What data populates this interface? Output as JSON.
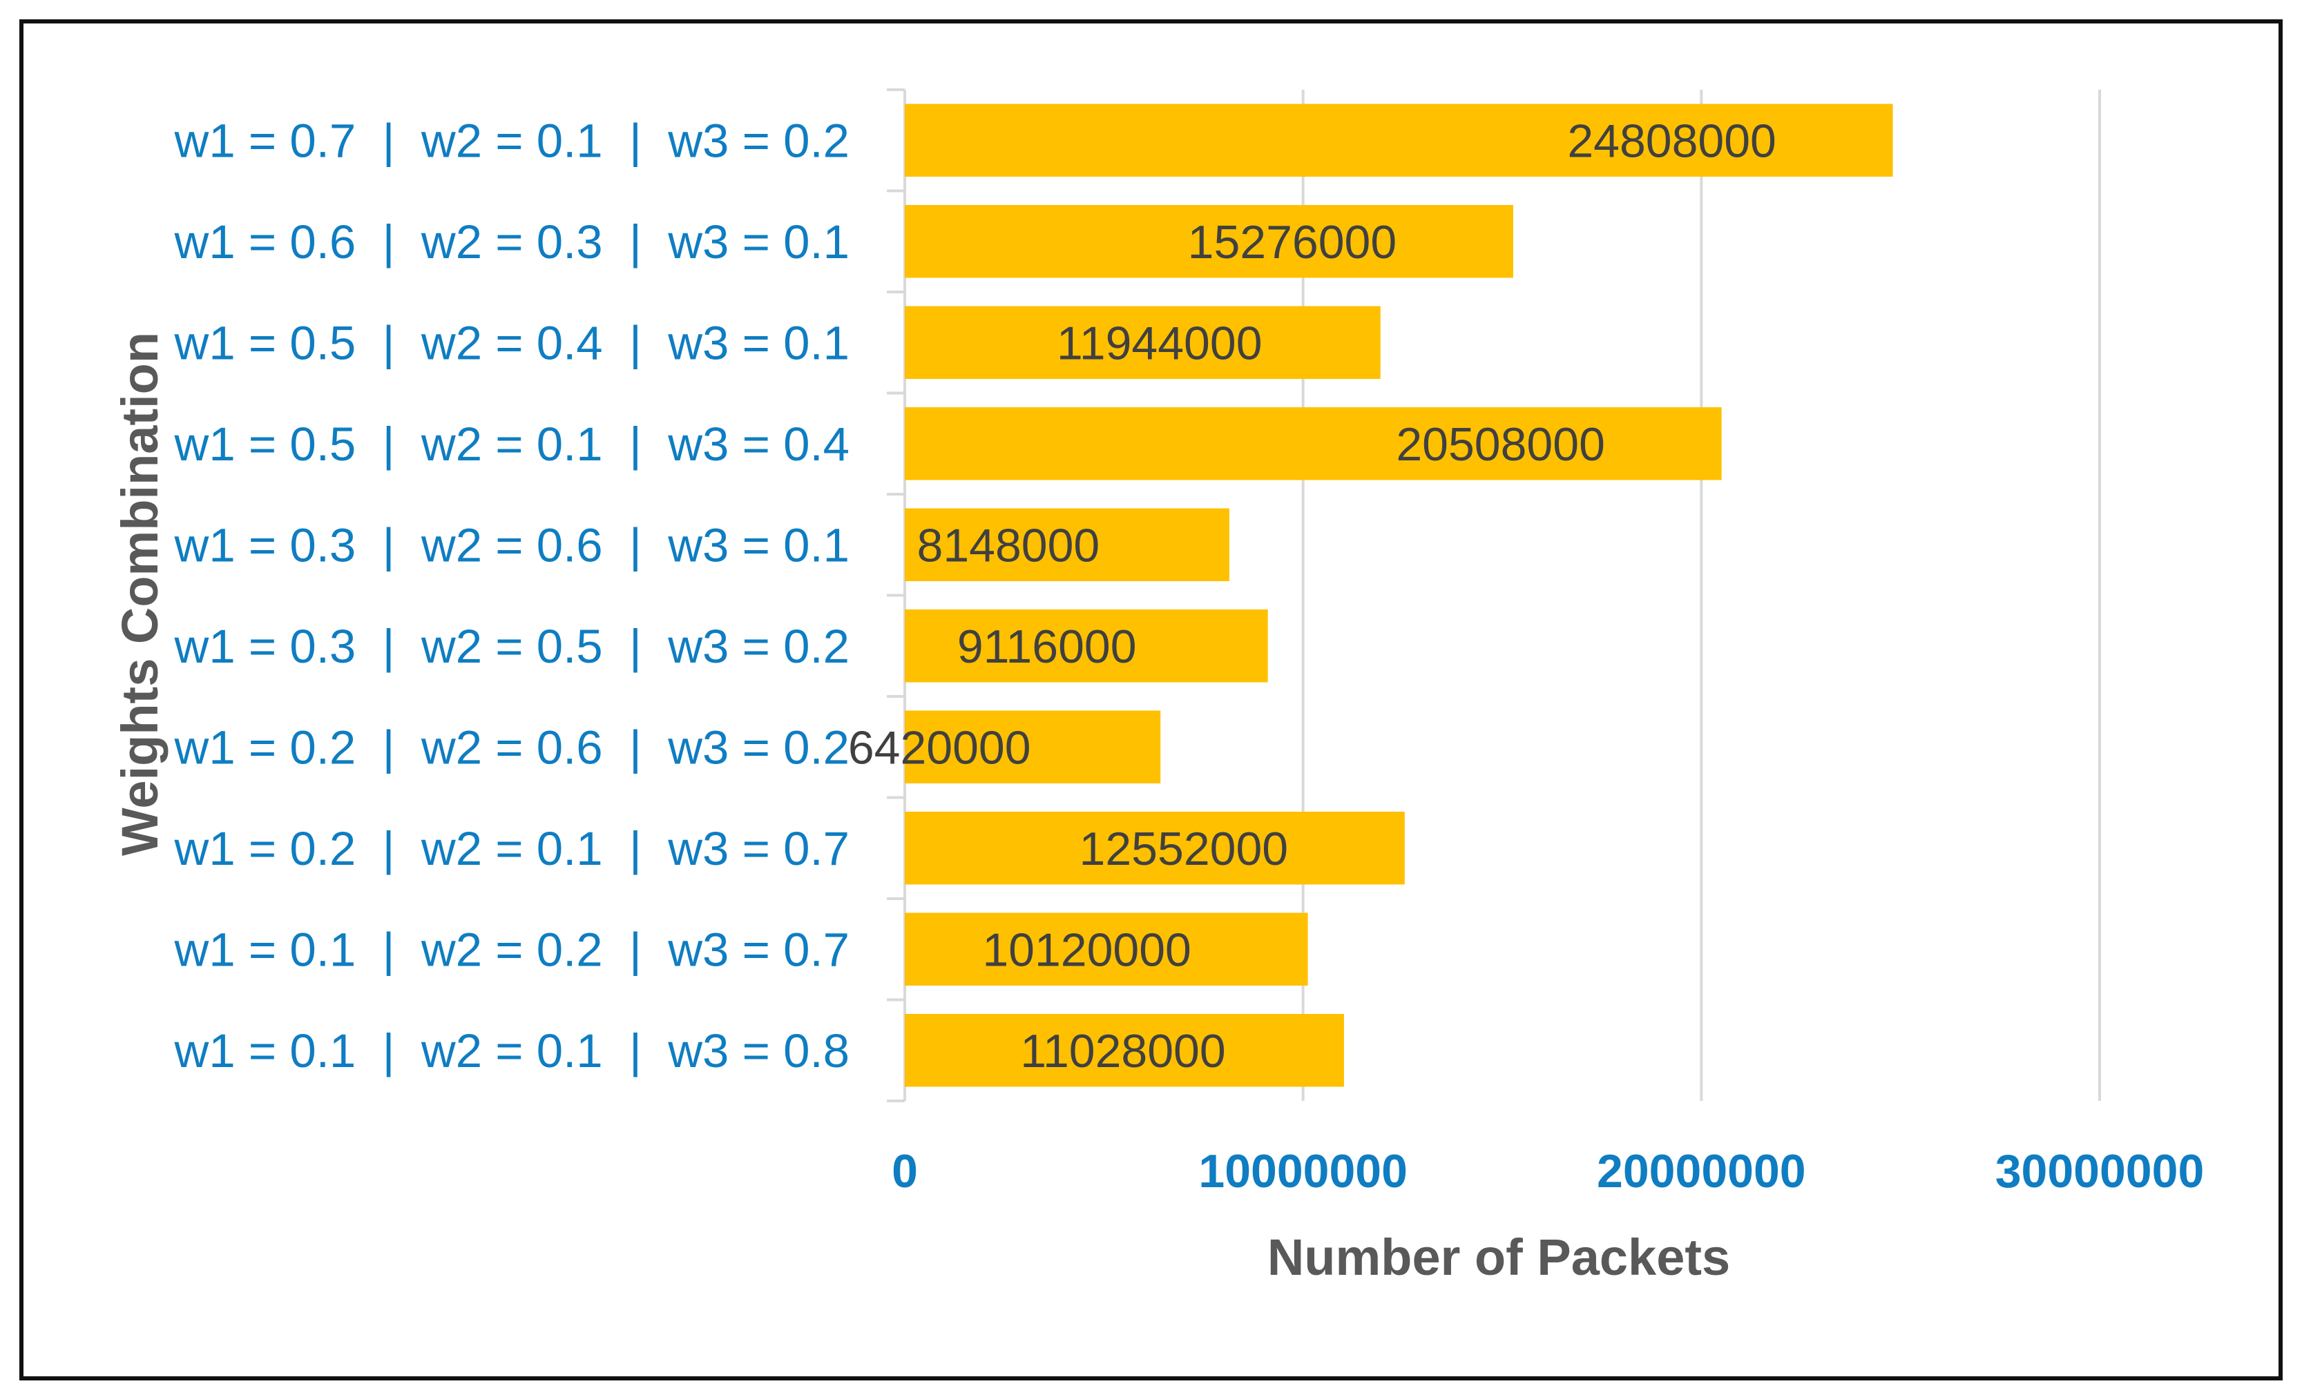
{
  "chart_data": {
    "type": "bar",
    "orientation": "horizontal",
    "categories": [
      "w1 = 0.7  |  w2 = 0.1  |  w3 = 0.2",
      "w1 = 0.6  |  w2 = 0.3  |  w3 = 0.1",
      "w1 = 0.5  |  w2 = 0.4  |  w3 = 0.1",
      "w1 = 0.5  |  w2 = 0.1  |  w3 = 0.4",
      "w1 = 0.3  |  w2 = 0.6  |  w3 = 0.1",
      "w1 = 0.3  |  w2 = 0.5  |  w3 = 0.2",
      "w1 = 0.2  |  w2 = 0.6  |  w3 = 0.2",
      "w1 = 0.2  |  w2 = 0.1  |  w3 = 0.7",
      "w1 = 0.1  |  w2 = 0.2  |  w3 = 0.7",
      "w1 = 0.1  |  w2 = 0.1  |  w3 = 0.8"
    ],
    "values": [
      24808000,
      15276000,
      11944000,
      20508000,
      8148000,
      9116000,
      6420000,
      12552000,
      10120000,
      11028000
    ],
    "data_labels": [
      "24808000",
      "15276000",
      "11944000",
      "20508000",
      "8148000",
      "9116000",
      "6420000",
      "12552000",
      "10120000",
      "11028000"
    ],
    "xlim": [
      0,
      30000000
    ],
    "xticks": [
      0,
      10000000,
      20000000,
      30000000
    ],
    "xtick_labels": [
      "0",
      "10000000",
      "20000000",
      "30000000"
    ],
    "xlabel": "Number of Packets",
    "ylabel": "Weights Combination",
    "title": "",
    "grid": "vertical major gridlines",
    "legend": "none"
  },
  "colors": {
    "bar": "#FFC000",
    "category_text": "#0F7DC2",
    "tick_text": "#0F7DC2",
    "value_text": "#404040",
    "axis_title": "#595959",
    "gridline": "#D9D9D9",
    "axis_line": "#D9D9D9",
    "frame": "#111111"
  }
}
